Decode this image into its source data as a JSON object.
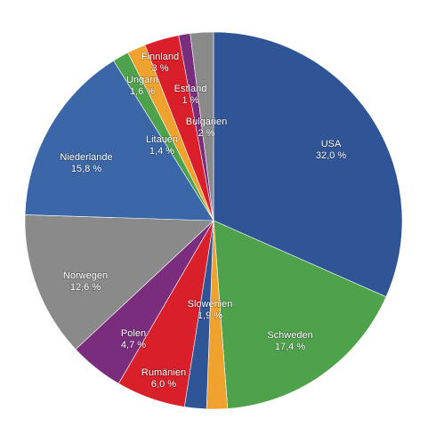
{
  "chart_data": {
    "type": "pie",
    "start_angle_deg": 0,
    "direction": "clockwise",
    "slices": [
      {
        "label": "USA",
        "value_text": "32,0 %",
        "value": 32.0,
        "color": "#2f5597"
      },
      {
        "label": "Schweden",
        "value_text": "17,4 %",
        "value": 17.4,
        "color": "#4ea24b"
      },
      {
        "label": "",
        "value_text": "",
        "value": 1.8,
        "color": "#f0a22e"
      },
      {
        "label": "Slowenien",
        "value_text": "1,9 %",
        "value": 1.9,
        "color": "#2f5597"
      },
      {
        "label": "Rumänien",
        "value_text": "6,0 %",
        "value": 6.0,
        "color": "#d81f2a"
      },
      {
        "label": "Polen",
        "value_text": "4,7 %",
        "value": 4.7,
        "color": "#7a2d7d"
      },
      {
        "label": "Norwegen",
        "value_text": "12,6 %",
        "value": 12.6,
        "color": "#8a8a8a"
      },
      {
        "label": "Niederlande",
        "value_text": "15,8 %",
        "value": 15.8,
        "color": "#3b66a7"
      },
      {
        "label": "Litauen",
        "value_text": "1,4 %",
        "value": 1.4,
        "color": "#4ea24b"
      },
      {
        "label": "Ungarn",
        "value_text": "1,6 %",
        "value": 1.6,
        "color": "#f0a22e"
      },
      {
        "label": "Finnland",
        "value_text": "3 %",
        "value": 3.0,
        "color": "#d81f2a"
      },
      {
        "label": "Estland",
        "value_text": "1 %",
        "value": 1.0,
        "color": "#7a2d7d"
      },
      {
        "label": "Bulgarien",
        "value_text": "2 %",
        "value": 2.0,
        "color": "#8a8a8a"
      }
    ]
  }
}
